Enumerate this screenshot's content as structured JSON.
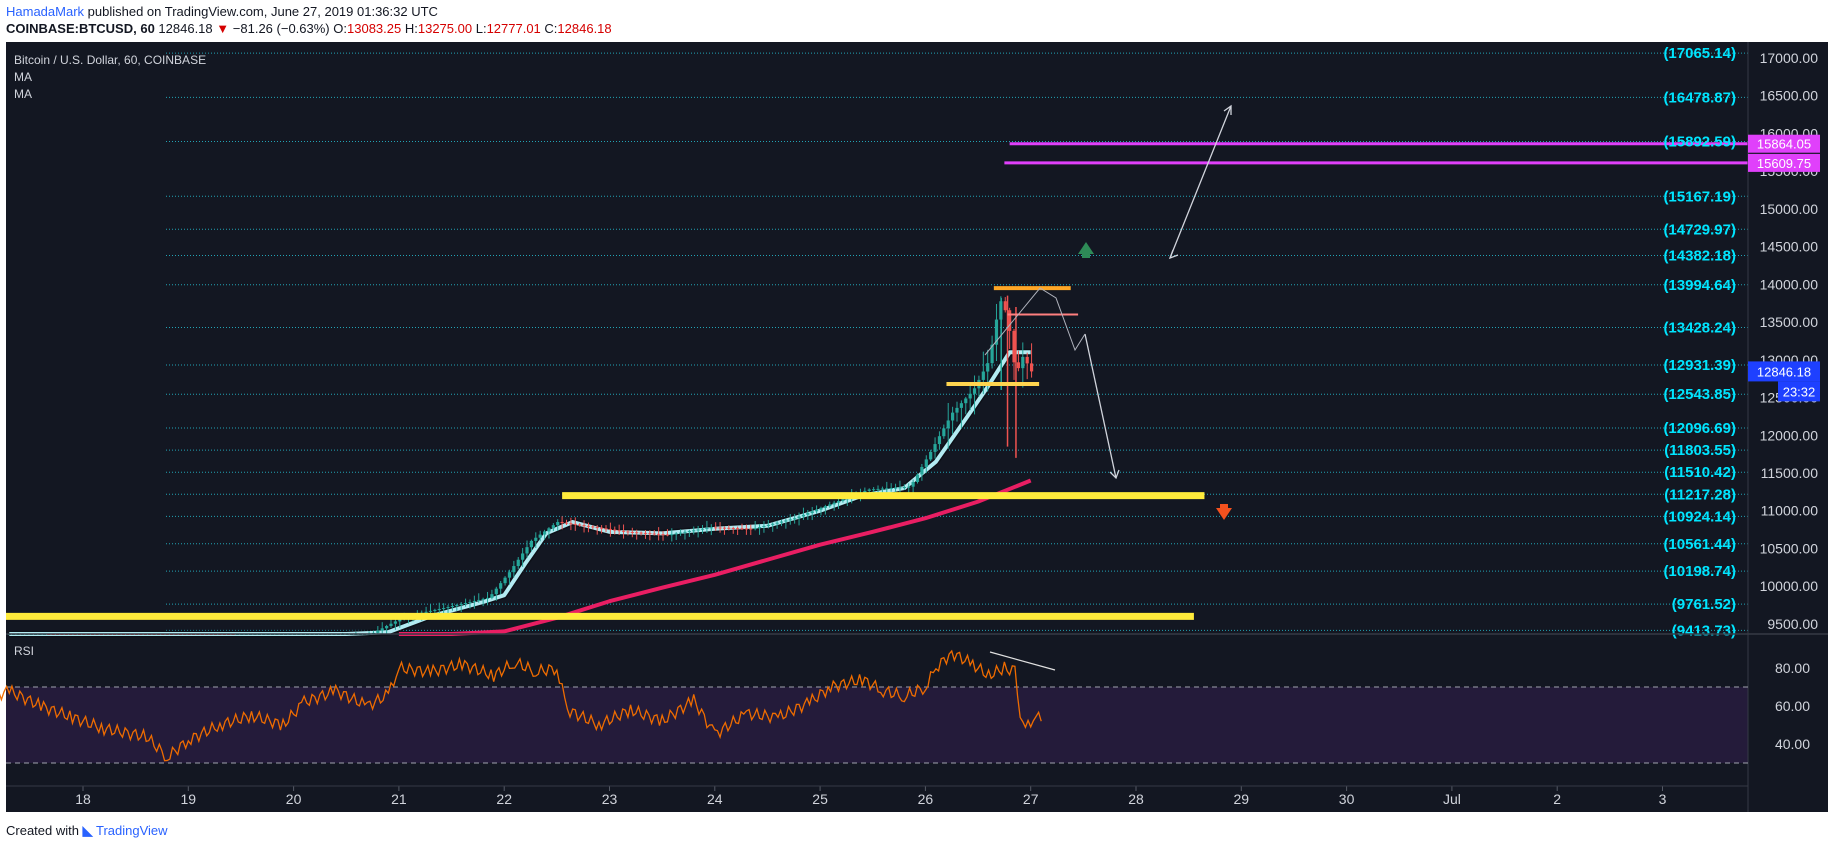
{
  "header": {
    "author": "HamadaMark",
    "published_text": "published on TradingView.com, June 27, 2019 01:36:32 UTC",
    "symbol": "COINBASE:BTCUSD, 60",
    "last": "12846.18",
    "down_arrow": "▼",
    "change": "−81.26 (−0.63%)",
    "o_label": "O:",
    "o_value": "13083.25",
    "h_label": "H:",
    "h_value": "13275.00",
    "l_label": "L:",
    "l_value": "12777.01",
    "c_label": "C:",
    "c_value": "12846.18"
  },
  "legend": {
    "title": "Bitcoin / U.S. Dollar, 60, COINBASE",
    "ma1": "MA",
    "ma2": "MA"
  },
  "footer": {
    "created_with": "Created with",
    "brand": "TradingView"
  },
  "colors": {
    "background": "#131722",
    "rsi_band": "#241b3a",
    "grid_dotted": "#26c6da",
    "level_text": "#00e5ff",
    "ma_fast": "#b2ebf2",
    "ma_slow": "#e91e63",
    "support": "#ffeb3b",
    "magenta": "#e040fb",
    "rsi_line": "#ef6c00",
    "last_price_tag": "#1e40ff",
    "candle_up": "#26a69a",
    "candle_down": "#ef5350",
    "arrow_up": "#2e8b57",
    "arrow_down": "#f4511e"
  },
  "chart_data": [
    {
      "type": "candlestick",
      "title": "Bitcoin / U.S. Dollar, 60, COINBASE",
      "x_axis": {
        "ticks": [
          "18",
          "19",
          "20",
          "21",
          "22",
          "23",
          "24",
          "25",
          "26",
          "27",
          "28",
          "29",
          "30",
          "Jul",
          "2",
          "3"
        ]
      },
      "y_axis": {
        "range": [
          9200,
          17100
        ],
        "ticks": [
          9500,
          10000,
          10500,
          11000,
          11500,
          12000,
          12500,
          13000,
          13500,
          14000,
          14500,
          15000,
          15500,
          16000,
          16500,
          17000
        ],
        "tick_labels": [
          "9500.00",
          "10000.00",
          "10500.00",
          "11000.00",
          "11500.00",
          "12000.00",
          "12500.00",
          "13000.00",
          "13500.00",
          "14000.00",
          "14500.00",
          "15000.00",
          "15500.00",
          "16000.00",
          "16500.00",
          "17000.00"
        ]
      },
      "price_path": [
        [
          17.3,
          9280
        ],
        [
          17.7,
          9290
        ],
        [
          18.2,
          9230
        ],
        [
          18.6,
          9130
        ],
        [
          19.0,
          9080
        ],
        [
          19.5,
          9060
        ],
        [
          20.0,
          9160
        ],
        [
          20.4,
          9260
        ],
        [
          20.8,
          9380
        ],
        [
          21.1,
          9600
        ],
        [
          21.5,
          9720
        ],
        [
          21.9,
          9850
        ],
        [
          22.1,
          10200
        ],
        [
          22.3,
          10600
        ],
        [
          22.55,
          10850
        ],
        [
          22.8,
          10800
        ],
        [
          23.2,
          10720
        ],
        [
          23.6,
          10680
        ],
        [
          24.0,
          10780
        ],
        [
          24.4,
          10760
        ],
        [
          24.8,
          10900
        ],
        [
          25.2,
          11120
        ],
        [
          25.5,
          11280
        ],
        [
          25.9,
          11320
        ],
        [
          26.1,
          11800
        ],
        [
          26.3,
          12300
        ],
        [
          26.5,
          12600
        ],
        [
          26.65,
          13000
        ],
        [
          26.75,
          13800
        ],
        [
          26.82,
          13600
        ],
        [
          26.9,
          12800
        ],
        [
          26.97,
          13050
        ],
        [
          27.05,
          12846.18
        ]
      ],
      "ma_fast": [
        [
          17.3,
          9280
        ],
        [
          17.8,
          9300
        ],
        [
          18.3,
          9250
        ],
        [
          18.7,
          9150
        ],
        [
          19.2,
          9110
        ],
        [
          19.7,
          9080
        ],
        [
          20.1,
          9150
        ],
        [
          20.5,
          9260
        ],
        [
          20.9,
          9390
        ],
        [
          21.3,
          9600
        ],
        [
          21.8,
          9790
        ],
        [
          22.0,
          9880
        ],
        [
          22.2,
          10300
        ],
        [
          22.4,
          10700
        ],
        [
          22.65,
          10850
        ],
        [
          23.0,
          10720
        ],
        [
          23.5,
          10700
        ],
        [
          24.0,
          10760
        ],
        [
          24.5,
          10800
        ],
        [
          25.0,
          11000
        ],
        [
          25.4,
          11200
        ],
        [
          25.8,
          11300
        ],
        [
          26.1,
          11650
        ],
        [
          26.4,
          12250
        ],
        [
          26.6,
          12660
        ],
        [
          26.8,
          13100
        ],
        [
          27.0,
          13100
        ]
      ],
      "ma_slow": [
        [
          21.0,
          9200
        ],
        [
          21.5,
          9300
        ],
        [
          22.0,
          9400
        ],
        [
          22.5,
          9580
        ],
        [
          23.0,
          9800
        ],
        [
          23.5,
          9980
        ],
        [
          24.0,
          10150
        ],
        [
          24.5,
          10350
        ],
        [
          25.0,
          10550
        ],
        [
          25.5,
          10720
        ],
        [
          26.0,
          10900
        ],
        [
          26.5,
          11120
        ],
        [
          27.0,
          11400
        ]
      ],
      "levels": [
        {
          "value": 17065.14,
          "label": "(17065.14)"
        },
        {
          "value": 16478.87,
          "label": "(16478.87)"
        },
        {
          "value": 15892.59,
          "label": "(15892.59)"
        },
        {
          "value": 15167.19,
          "label": "(15167.19)"
        },
        {
          "value": 14729.97,
          "label": "(14729.97)"
        },
        {
          "value": 14382.18,
          "label": "(14382.18)"
        },
        {
          "value": 13994.64,
          "label": "(13994.64)"
        },
        {
          "value": 13428.24,
          "label": "(13428.24)"
        },
        {
          "value": 12931.39,
          "label": "(12931.39)"
        },
        {
          "value": 12543.85,
          "label": "(12543.85)"
        },
        {
          "value": 12096.69,
          "label": "(12096.69)"
        },
        {
          "value": 11803.55,
          "label": "(11803.55)"
        },
        {
          "value": 11510.42,
          "label": "(11510.42)"
        },
        {
          "value": 11217.28,
          "label": "(11217.28)"
        },
        {
          "value": 10924.14,
          "label": "(10924.14)"
        },
        {
          "value": 10561.44,
          "label": "(10561.44)"
        },
        {
          "value": 10198.74,
          "label": "(10198.74)"
        },
        {
          "value": 9761.52,
          "label": "(9761.52)"
        },
        {
          "value": 9413.73,
          "label": "(9413.73)"
        }
      ],
      "support_lines": [
        {
          "value": 9600,
          "x_from": 17.0,
          "x_to": 28.55
        },
        {
          "value": 11200,
          "x_from": 22.55,
          "x_to": 28.65
        }
      ],
      "resistance_lines": [
        {
          "value": 15864.05,
          "x_from": 26.8,
          "x_to": 32.0,
          "tag": "15864.05"
        },
        {
          "value": 15609.75,
          "x_from": 26.75,
          "x_to": 32.0,
          "tag": "15609.75"
        }
      ],
      "short_lines": [
        {
          "value": 13950,
          "x_from": 26.65,
          "x_to": 27.38,
          "color": "#ffa726"
        },
        {
          "value": 13600,
          "x_from": 26.78,
          "x_to": 27.45,
          "color": "#ff7f7f"
        },
        {
          "value": 12680,
          "x_from": 26.2,
          "x_to": 27.08,
          "color": "#ffd54f"
        }
      ],
      "last_price": {
        "tag": "12846.18",
        "countdown": "23:32",
        "value": 12846.18
      }
    },
    {
      "type": "line",
      "title": "RSI",
      "y_axis": {
        "range": [
          25,
          95
        ],
        "ticks": [
          40,
          60,
          80
        ],
        "tick_labels": [
          "40.00",
          "60.00",
          "80.00"
        ]
      },
      "bands": [
        30,
        70
      ],
      "series": [
        {
          "values": [
            [
              17.0,
              62
            ],
            [
              17.3,
              68
            ],
            [
              17.6,
              60
            ],
            [
              17.9,
              54
            ],
            [
              18.2,
              48
            ],
            [
              18.6,
              44
            ],
            [
              18.8,
              33
            ],
            [
              19.0,
              42
            ],
            [
              19.3,
              50
            ],
            [
              19.6,
              55
            ],
            [
              19.9,
              50
            ],
            [
              20.1,
              62
            ],
            [
              20.4,
              68
            ],
            [
              20.7,
              60
            ],
            [
              20.9,
              66
            ],
            [
              21.0,
              80
            ],
            [
              21.3,
              78
            ],
            [
              21.6,
              82
            ],
            [
              21.9,
              76
            ],
            [
              22.1,
              83
            ],
            [
              22.3,
              78
            ],
            [
              22.5,
              80
            ],
            [
              22.6,
              58
            ],
            [
              22.9,
              50
            ],
            [
              23.2,
              58
            ],
            [
              23.5,
              52
            ],
            [
              23.8,
              63
            ],
            [
              24.0,
              45
            ],
            [
              24.3,
              56
            ],
            [
              24.6,
              54
            ],
            [
              24.9,
              62
            ],
            [
              25.1,
              70
            ],
            [
              25.4,
              74
            ],
            [
              25.6,
              68
            ],
            [
              25.8,
              65
            ],
            [
              26.0,
              70
            ],
            [
              26.1,
              80
            ],
            [
              26.25,
              88
            ],
            [
              26.45,
              82
            ],
            [
              26.6,
              76
            ],
            [
              26.75,
              80
            ],
            [
              26.85,
              78
            ],
            [
              26.9,
              52
            ],
            [
              26.95,
              48
            ],
            [
              27.05,
              55
            ],
            [
              27.1,
              52
            ]
          ]
        }
      ]
    }
  ]
}
